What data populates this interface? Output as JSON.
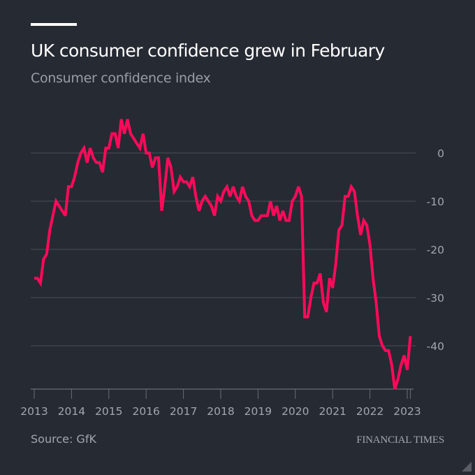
{
  "header": {
    "title": "UK consumer confidence grew in February",
    "subtitle": "Consumer confidence index"
  },
  "footer": {
    "source": "Source: GfK",
    "brand": "FINANCIAL TIMES"
  },
  "colors": {
    "background": "#262a33",
    "line": "#ff0a5a",
    "grid": "#4a4e57",
    "text": "#a3a6ad"
  },
  "chart_data": {
    "type": "line",
    "title": "UK consumer confidence grew in February",
    "subtitle": "Consumer confidence index",
    "xlabel": "",
    "ylabel": "",
    "x_start": "2013-01",
    "x_end": "2023-02",
    "frequency": "monthly",
    "x_ticks": [
      "2013",
      "2014",
      "2015",
      "2016",
      "2017",
      "2018",
      "2019",
      "2020",
      "2021",
      "2022",
      "2023"
    ],
    "y_ticks": [
      0,
      -10,
      -20,
      -30,
      -40
    ],
    "y_tick_labels": [
      "0",
      "-10",
      "-20",
      "-30",
      "-40"
    ],
    "ylim": [
      -49,
      7
    ],
    "grid": true,
    "legend": "none",
    "series": [
      {
        "name": "Consumer confidence index",
        "values": [
          -26,
          -26,
          -27,
          -22,
          -21,
          -16,
          -13,
          -10,
          -11,
          -12,
          -13,
          -7,
          -7,
          -5,
          -2,
          0,
          1,
          -2,
          1,
          -1,
          -2,
          -2,
          -4,
          1,
          1,
          4,
          4,
          1,
          7,
          4,
          7,
          4,
          3,
          2,
          1,
          4,
          0,
          0,
          -3,
          -1,
          -1,
          -12,
          -7,
          -1,
          -3,
          -8,
          -7,
          -5,
          -6,
          -6,
          -7,
          -5,
          -9,
          -12,
          -10,
          -9,
          -10,
          -11,
          -13,
          -9,
          -10,
          -8,
          -7,
          -9,
          -7,
          -9,
          -10,
          -7,
          -9,
          -10,
          -13,
          -14,
          -14,
          -13,
          -13,
          -13,
          -10,
          -13,
          -11,
          -14,
          -12,
          -14,
          -14,
          -10,
          -9,
          -7,
          -9,
          -34,
          -34,
          -30,
          -27,
          -27,
          -25,
          -31,
          -33,
          -26,
          -28,
          -23,
          -16,
          -15,
          -9,
          -9,
          -7,
          -8,
          -13,
          -17,
          -14,
          -15,
          -19,
          -26,
          -31,
          -38,
          -40,
          -41,
          -41,
          -44,
          -49,
          -47,
          -44,
          -42,
          -45,
          -38
        ]
      }
    ],
    "source": "GfK"
  }
}
